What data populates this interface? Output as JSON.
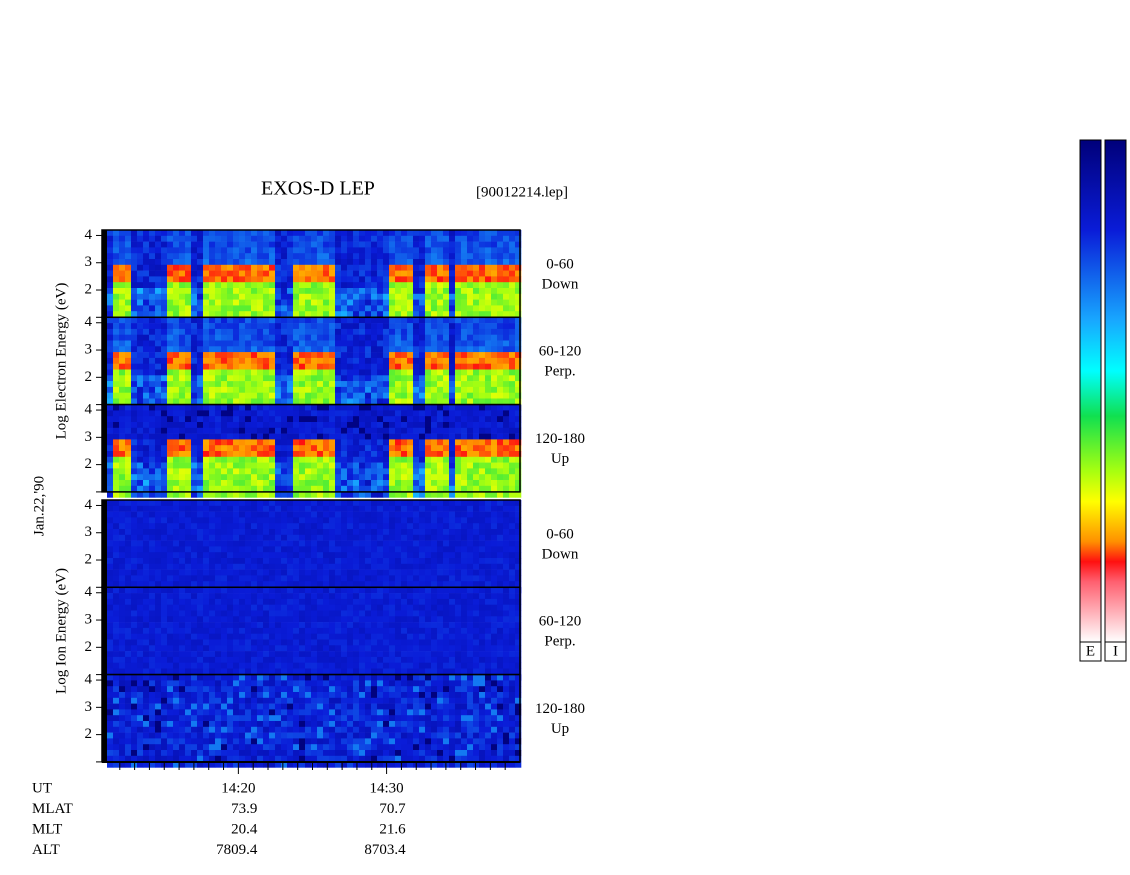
{
  "chart_data": {
    "type": "spectrogram",
    "title": "EXOS-D LEP",
    "file_label": "[90012214.lep]",
    "date_label": "Jan.22,'90",
    "xlim": [
      850.8,
      879
    ],
    "xticks": [
      {
        "value": 860,
        "label": "14:20"
      },
      {
        "value": 870,
        "label": "14:30"
      }
    ],
    "xminorticks": [
      852,
      853,
      854,
      855,
      856,
      857,
      858,
      859,
      861,
      862,
      863,
      864,
      865,
      866,
      867,
      868,
      869,
      871,
      872,
      873,
      874,
      875,
      876,
      877,
      878
    ],
    "ylim": [
      1,
      4.2
    ],
    "yticks": [
      2,
      3,
      4
    ],
    "groups": [
      {
        "species": "Electron",
        "ylabel": "Log Electron Energy (eV)",
        "panels": [
          {
            "range": "0-60",
            "direction": "Down"
          },
          {
            "range": "60-120",
            "direction": "Perp."
          },
          {
            "range": "120-180",
            "direction": "Up"
          }
        ]
      },
      {
        "species": "Ion",
        "ylabel": "Log Ion Energy (eV)",
        "panels": [
          {
            "range": "0-60",
            "direction": "Down"
          },
          {
            "range": "60-120",
            "direction": "Perp."
          },
          {
            "range": "120-180",
            "direction": "Up"
          }
        ]
      }
    ],
    "ephemeris": {
      "labels": [
        "UT",
        "MLAT",
        "MLT",
        "ALT"
      ],
      "columns": [
        {
          "at": 860,
          "values": [
            73.9,
            20.4,
            7809.4
          ]
        },
        {
          "at": 870,
          "values": [
            70.7,
            21.6,
            8703.4
          ]
        }
      ]
    },
    "colorbars": [
      "E",
      "I"
    ]
  }
}
